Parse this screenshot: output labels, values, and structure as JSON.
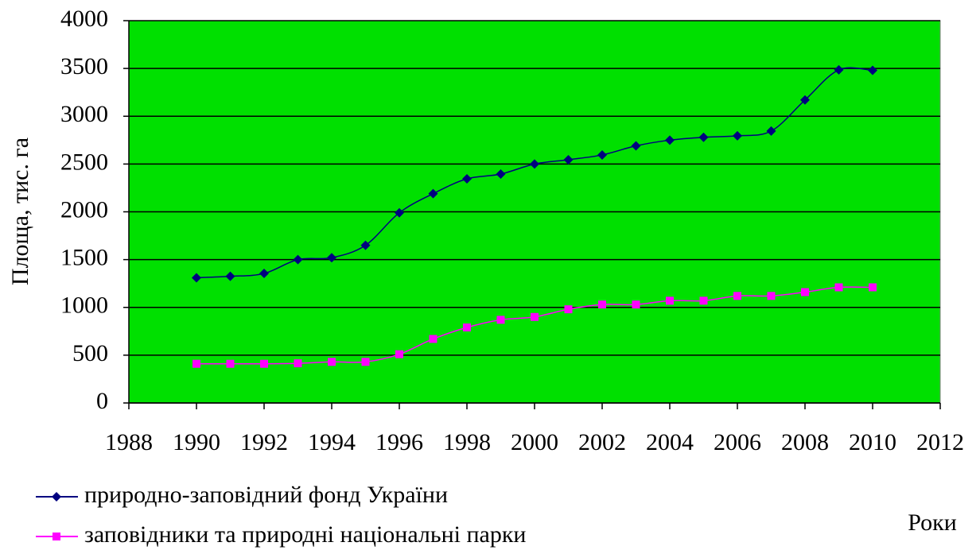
{
  "chart_data": {
    "type": "line",
    "ylabel": "Площа, тис. га",
    "xlabel": "Роки",
    "x": [
      1990,
      1991,
      1992,
      1993,
      1994,
      1995,
      1996,
      1997,
      1998,
      1999,
      2000,
      2001,
      2002,
      2003,
      2004,
      2005,
      2006,
      2007,
      2008,
      2009,
      2010
    ],
    "series": [
      {
        "name": "природно-заповідний фонд України",
        "color": "#000080",
        "marker": "diamond",
        "values": [
          1310,
          1325,
          1355,
          1500,
          1520,
          1650,
          1990,
          2190,
          2345,
          2395,
          2500,
          2545,
          2595,
          2690,
          2750,
          2780,
          2795,
          2845,
          3170,
          3485,
          3480
        ]
      },
      {
        "name": "заповідники та природні національні парки",
        "color": "#ff00ff",
        "marker": "square",
        "values": [
          410,
          410,
          410,
          415,
          430,
          430,
          510,
          670,
          790,
          870,
          900,
          980,
          1030,
          1030,
          1070,
          1070,
          1120,
          1120,
          1160,
          1210,
          1210
        ]
      }
    ],
    "xlim": [
      1988,
      2012
    ],
    "xticks": [
      1988,
      1990,
      1992,
      1994,
      1996,
      1998,
      2000,
      2002,
      2004,
      2006,
      2008,
      2010,
      2012
    ],
    "ylim": [
      0,
      4000
    ],
    "yticks": [
      0,
      500,
      1000,
      1500,
      2000,
      2500,
      3000,
      3500,
      4000
    ],
    "grid": true,
    "background": "#00e000",
    "legend": "bottom-left"
  }
}
